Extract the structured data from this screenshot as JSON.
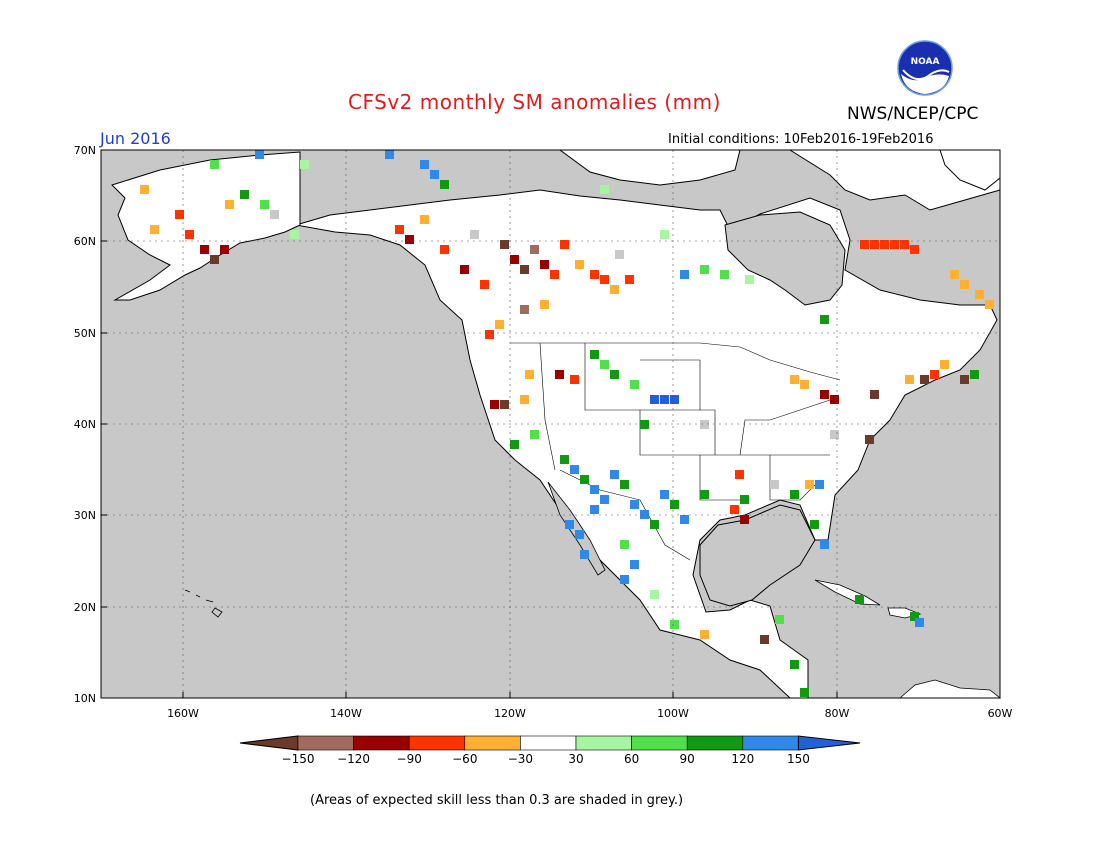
{
  "header": {
    "title": "CFSv2 monthly SM anomalies (mm)",
    "agency": "NWS/NCEP/CPC",
    "logo_text": "NOAA",
    "valid_month": "Jun 2016",
    "initial_conditions": "Initial conditions: 10Feb2016-19Feb2016"
  },
  "map": {
    "lat_ticks": [
      "70N",
      "60N",
      "50N",
      "40N",
      "30N",
      "20N",
      "10N"
    ],
    "lon_ticks": [
      "160W",
      "140W",
      "120W",
      "100W",
      "80W",
      "60W"
    ],
    "lon_range": [
      -170,
      -60
    ],
    "lat_range": [
      10,
      70
    ],
    "ocean_color": "#c8c8c8",
    "land_color": "#ffffff"
  },
  "colorbar": {
    "labels": [
      "-150",
      "-120",
      "-90",
      "-60",
      "-30",
      "30",
      "60",
      "90",
      "120",
      "150"
    ],
    "colors": [
      "#6b3a2a",
      "#a36b5e",
      "#990000",
      "#ff3300",
      "#ffb033",
      "#ffffff",
      "#a7f5a0",
      "#4fe04a",
      "#119911",
      "#3088e8",
      "#2060d8"
    ],
    "units": "mm"
  },
  "footnote": "(Areas of expected skill less than 0.3 are shaded in grey.)"
}
